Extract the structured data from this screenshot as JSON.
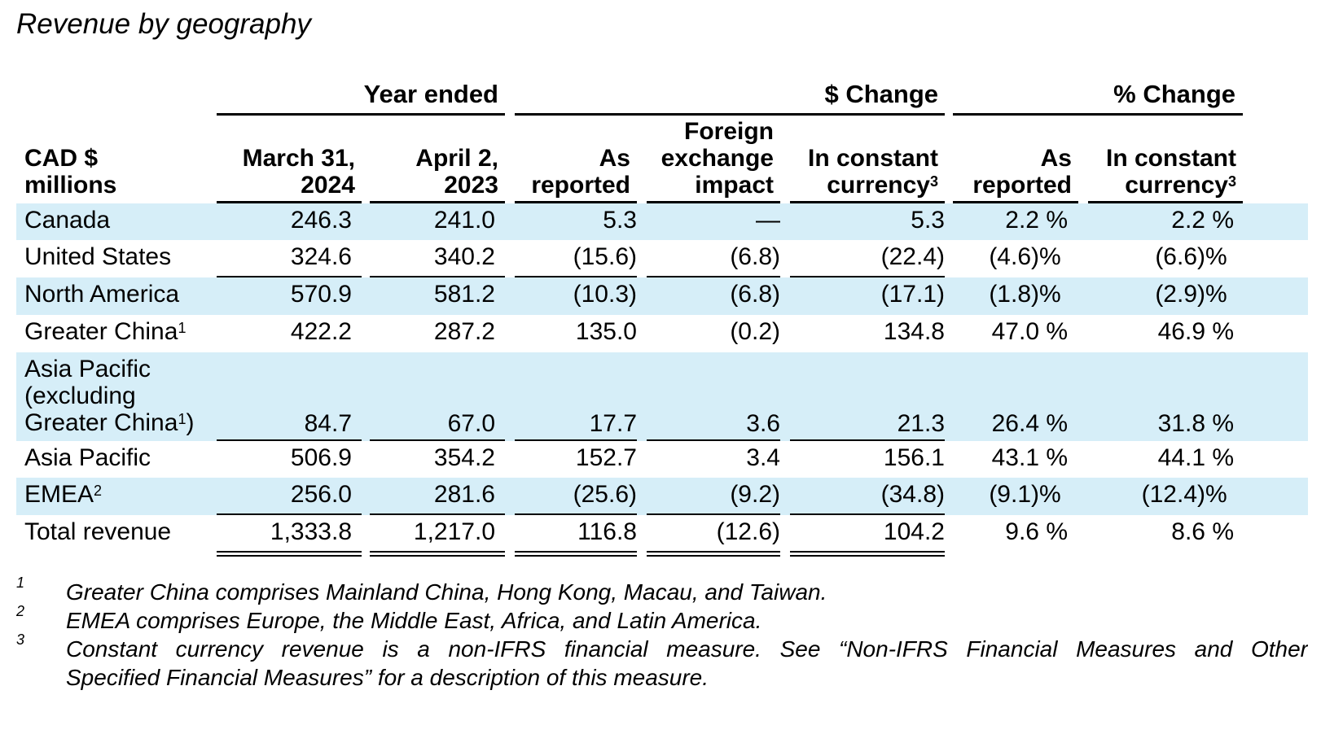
{
  "title": "Revenue by geography",
  "groups": {
    "year_ended": "Year ended",
    "dollar_change": "$ Change",
    "pct_change": "% Change"
  },
  "headers": {
    "label": [
      "CAD $",
      "millions"
    ],
    "mar2024": [
      "March 31,",
      "2024"
    ],
    "apr2023": [
      "April 2,",
      "2023"
    ],
    "as_reported": [
      "As",
      "reported"
    ],
    "fx": [
      "Foreign",
      "exchange",
      "impact"
    ],
    "constant": [
      "In constant",
      "currency",
      "3"
    ],
    "pct_as_reported": [
      "As",
      "reported"
    ],
    "pct_constant": [
      "In constant",
      "currency",
      "3"
    ]
  },
  "rows": [
    {
      "label": "Canada",
      "mar2024": "246.3",
      "apr2023": "241.0",
      "as_reported": "5.3",
      "fx": "—",
      "constant": "5.3",
      "pct_as_reported": "2.2",
      "pct_as_reported_sign": " %",
      "pct_constant": "2.2",
      "pct_constant_sign": " %"
    },
    {
      "label": "United States",
      "mar2024": "324.6",
      "apr2023": "340.2",
      "as_reported": "(15.6)",
      "fx": "(6.8)",
      "constant": "(22.4)",
      "pct_as_reported": "(4.6)",
      "pct_as_reported_sign": "%",
      "pct_constant": "(6.6)",
      "pct_constant_sign": "%"
    },
    {
      "label": "North America",
      "mar2024": "570.9",
      "apr2023": "581.2",
      "as_reported": "(10.3)",
      "fx": "(6.8)",
      "constant": "(17.1)",
      "pct_as_reported": "(1.8)",
      "pct_as_reported_sign": "%",
      "pct_constant": "(2.9)",
      "pct_constant_sign": "%"
    },
    {
      "label": "Greater China",
      "label_sup": "1",
      "mar2024": "422.2",
      "apr2023": "287.2",
      "as_reported": "135.0",
      "fx": "(0.2)",
      "constant": "134.8",
      "pct_as_reported": "47.0",
      "pct_as_reported_sign": " %",
      "pct_constant": "46.9",
      "pct_constant_sign": " %"
    },
    {
      "label_lines": [
        "Asia Pacific",
        "(excluding",
        "Greater China"
      ],
      "label_sup": "1",
      "label_tail": ")",
      "mar2024": "84.7",
      "apr2023": "67.0",
      "as_reported": "17.7",
      "fx": "3.6",
      "constant": "21.3",
      "pct_as_reported": "26.4",
      "pct_as_reported_sign": " %",
      "pct_constant": "31.8",
      "pct_constant_sign": " %"
    },
    {
      "label": "Asia Pacific",
      "mar2024": "506.9",
      "apr2023": "354.2",
      "as_reported": "152.7",
      "fx": "3.4",
      "constant": "156.1",
      "pct_as_reported": "43.1",
      "pct_as_reported_sign": " %",
      "pct_constant": "44.1",
      "pct_constant_sign": " %"
    },
    {
      "label": "EMEA",
      "label_sup": "2",
      "mar2024": "256.0",
      "apr2023": "281.6",
      "as_reported": "(25.6)",
      "fx": "(9.2)",
      "constant": "(34.8)",
      "pct_as_reported": "(9.1)",
      "pct_as_reported_sign": "%",
      "pct_constant": "(12.4)",
      "pct_constant_sign": "%"
    },
    {
      "label": "Total revenue",
      "mar2024": "1,333.8",
      "apr2023": "1,217.0",
      "as_reported": "116.8",
      "fx": "(12.6)",
      "constant": "104.2",
      "pct_as_reported": "9.6",
      "pct_as_reported_sign": " %",
      "pct_constant": "8.6",
      "pct_constant_sign": " %"
    }
  ],
  "footnotes": [
    {
      "num": "1",
      "text": "Greater China comprises Mainland China, Hong Kong, Macau, and Taiwan."
    },
    {
      "num": "2",
      "text": "EMEA comprises Europe, the Middle East, Africa, and Latin America."
    },
    {
      "num": "3",
      "text_line1": "Constant currency revenue is a non-IFRS financial measure. See “Non-IFRS Financial Measures and Other",
      "text_line2": "Specified Financial Measures” for a description of this measure."
    }
  ],
  "colors": {
    "row_shade": "#d6eef8",
    "rule": "#000000"
  }
}
